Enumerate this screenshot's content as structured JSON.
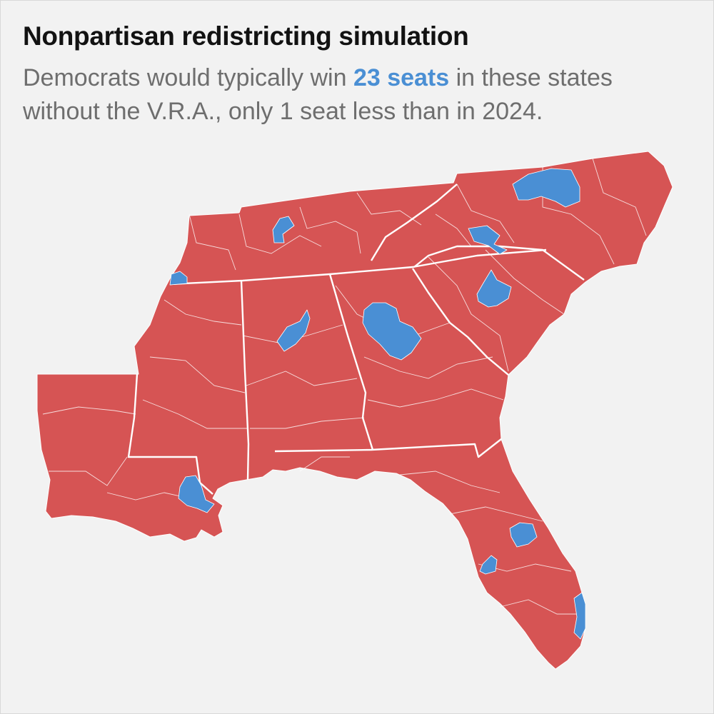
{
  "header": {
    "title": "Nonpartisan redistricting simulation",
    "subtitle_before": "Democrats would typically win ",
    "subtitle_highlight": "23 seats",
    "subtitle_after": " in these states without the V.R.A., only 1 seat less than in 2024."
  },
  "colors": {
    "background": "#f2f2f2",
    "republican": "#d65454",
    "democrat": "#4a8fd4",
    "state_border": "#ffffff",
    "highlight_text": "#4a8fd4"
  },
  "map": {
    "states": [
      "Louisiana",
      "Mississippi",
      "Alabama",
      "Georgia",
      "Florida",
      "South Carolina",
      "North Carolina",
      "Tennessee"
    ],
    "democratic_districts": [
      "Memphis, TN",
      "Nashville, TN",
      "New Orleans, LA",
      "Birmingham, AL",
      "Atlanta, GA",
      "Columbia, SC",
      "Charlotte, NC",
      "Raleigh-Durham, NC",
      "Orlando, FL",
      "Tampa, FL",
      "South Florida"
    ]
  }
}
